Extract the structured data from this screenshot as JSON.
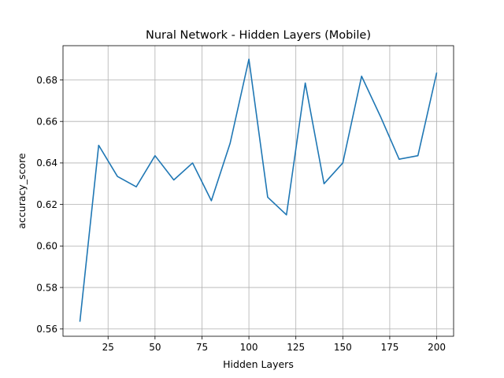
{
  "chart_data": {
    "type": "line",
    "title": "Nural Network - Hidden Layers (Mobile)",
    "xlabel": "Hidden Layers",
    "ylabel": "accuracy_score",
    "xlim": [
      1,
      209
    ],
    "ylim": [
      0.5565,
      0.6965
    ],
    "xticks": [
      25,
      50,
      75,
      100,
      125,
      150,
      175,
      200
    ],
    "xtick_labels": [
      "25",
      "50",
      "75",
      "100",
      "125",
      "150",
      "175",
      "200"
    ],
    "yticks": [
      0.56,
      0.58,
      0.6,
      0.62,
      0.64,
      0.66,
      0.68
    ],
    "ytick_labels": [
      "0.56",
      "0.58",
      "0.60",
      "0.62",
      "0.64",
      "0.66",
      "0.68"
    ],
    "grid": true,
    "series": [
      {
        "color": "#1f77b4",
        "x": [
          10,
          20,
          30,
          40,
          50,
          60,
          70,
          80,
          90,
          100,
          110,
          120,
          130,
          140,
          150,
          160,
          170,
          180,
          190,
          200
        ],
        "y": [
          0.5635,
          0.6485,
          0.6335,
          0.6285,
          0.6435,
          0.6318,
          0.64,
          0.6218,
          0.6495,
          0.69,
          0.6235,
          0.615,
          0.6785,
          0.63,
          0.64,
          0.6818,
          0.6625,
          0.6418,
          0.6435,
          0.6835
        ]
      }
    ]
  }
}
